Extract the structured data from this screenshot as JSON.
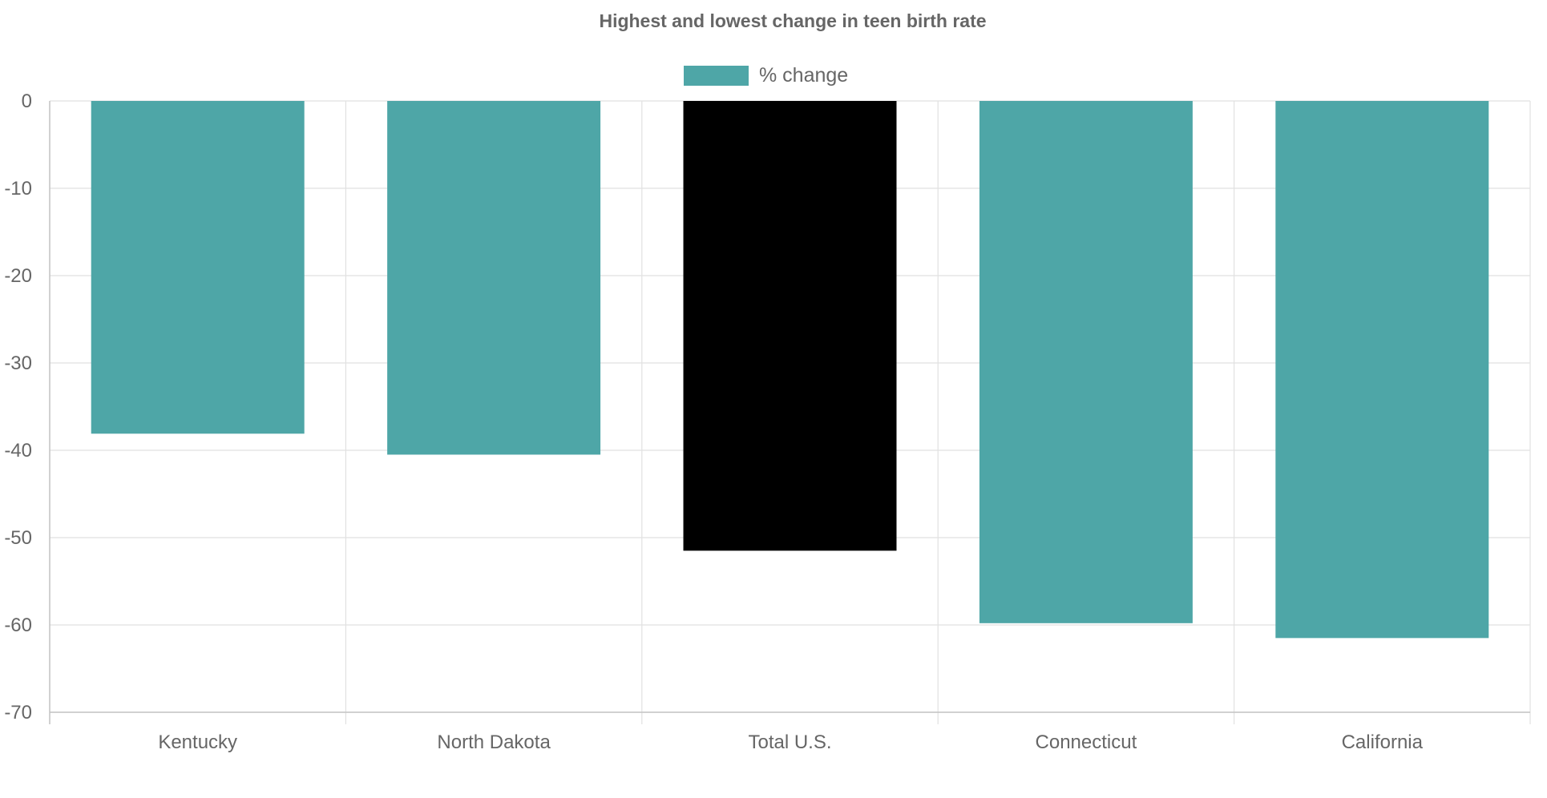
{
  "chart_data": {
    "type": "bar",
    "title": "Highest and lowest change in teen birth rate",
    "xlabel": "",
    "ylabel": "",
    "legend_position": "top",
    "grid": true,
    "ylim": [
      -70,
      0
    ],
    "y_ticks": [
      "0",
      "-10",
      "-20",
      "-30",
      "-40",
      "-50",
      "-60",
      "-70"
    ],
    "y_tick_values": [
      0,
      -10,
      -20,
      -30,
      -40,
      -50,
      -60,
      -70
    ],
    "categories": [
      "Kentucky",
      "North Dakota",
      "Total U.S.",
      "Connecticut",
      "California"
    ],
    "series": [
      {
        "name": "% change",
        "values": [
          -38.1,
          -40.5,
          -51.5,
          -59.8,
          -61.5
        ],
        "color": "#4ea6a7",
        "highlight_color": "#000000",
        "highlight_category": "Total U.S."
      }
    ]
  }
}
